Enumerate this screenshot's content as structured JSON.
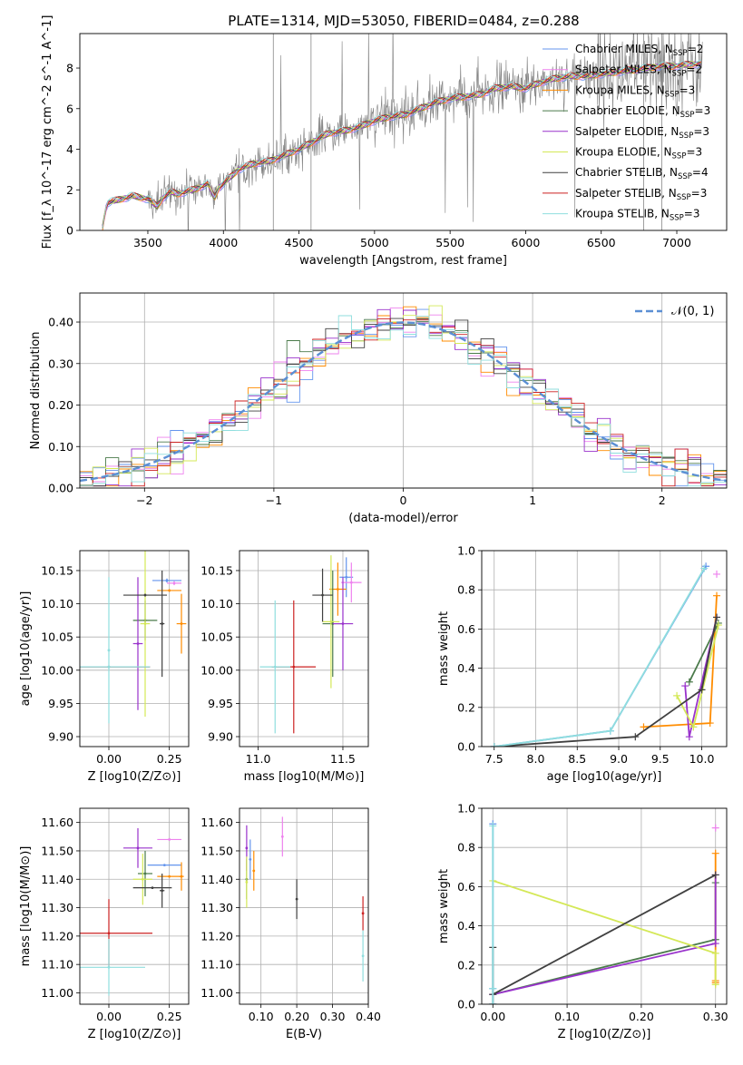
{
  "models": [
    {
      "name": "Chabrier MILES",
      "nssp": "2",
      "color": "#6495ed"
    },
    {
      "name": "Salpeter MILES",
      "nssp": "2",
      "color": "#ee82ee"
    },
    {
      "name": "Kroupa MILES",
      "nssp": "3",
      "color": "#ff8c00"
    },
    {
      "name": "Chabrier ELODIE",
      "nssp": "3",
      "color": "#4a7a4a"
    },
    {
      "name": "Salpeter ELODIE",
      "nssp": "3",
      "color": "#9932cc"
    },
    {
      "name": "Kroupa ELODIE",
      "nssp": "3",
      "color": "#d4e857"
    },
    {
      "name": "Chabrier STELIB",
      "nssp": "4",
      "color": "#404040"
    },
    {
      "name": "Salpeter STELIB",
      "nssp": "3",
      "color": "#cc2222"
    },
    {
      "name": "Kroupa STELIB",
      "nssp": "3",
      "color": "#8fdede"
    }
  ],
  "chart_data": [
    {
      "id": "spectrum",
      "type": "line",
      "title": "PLATE=1314, MJD=53050, FIBERID=0484, z=0.288",
      "xlabel": "wavelength [Angstrom, rest frame]",
      "ylabel": "Flux [f_λ 10^-17 erg cm^-2 s^-1 A^-1]",
      "xlim": [
        3050,
        7330
      ],
      "ylim": [
        0,
        9.7
      ],
      "xticks": [
        3500,
        4000,
        4500,
        5000,
        5500,
        6000,
        6500,
        7000
      ],
      "yticks": [
        0,
        2,
        4,
        6,
        8
      ],
      "legend": "upper-right",
      "continuum": [
        [
          3200,
          0.15
        ],
        [
          3210,
          0.6
        ],
        [
          3230,
          1.35
        ],
        [
          3300,
          1.5
        ],
        [
          3400,
          1.7
        ],
        [
          3500,
          1.55
        ],
        [
          3560,
          1.2
        ],
        [
          3600,
          1.6
        ],
        [
          3650,
          1.9
        ],
        [
          3700,
          1.8
        ],
        [
          3800,
          2.0
        ],
        [
          3900,
          2.3
        ],
        [
          3940,
          1.6
        ],
        [
          3970,
          2.1
        ],
        [
          4000,
          2.3
        ],
        [
          4100,
          3.0
        ],
        [
          4200,
          3.3
        ],
        [
          4300,
          3.4
        ],
        [
          4400,
          3.7
        ],
        [
          4500,
          4.0
        ],
        [
          4600,
          4.4
        ],
        [
          4700,
          4.8
        ],
        [
          4800,
          4.9
        ],
        [
          4900,
          5.1
        ],
        [
          5000,
          5.4
        ],
        [
          5100,
          5.6
        ],
        [
          5200,
          5.7
        ],
        [
          5300,
          6.0
        ],
        [
          5400,
          6.3
        ],
        [
          5500,
          6.5
        ],
        [
          5600,
          6.6
        ],
        [
          5700,
          6.7
        ],
        [
          5800,
          7.0
        ],
        [
          5900,
          7.1
        ],
        [
          6000,
          7.0
        ],
        [
          6100,
          7.3
        ],
        [
          6200,
          7.5
        ],
        [
          6300,
          7.6
        ],
        [
          6400,
          7.6
        ],
        [
          6500,
          7.7
        ],
        [
          6600,
          7.8
        ],
        [
          6700,
          7.9
        ],
        [
          6800,
          8.0
        ],
        [
          6900,
          8.1
        ],
        [
          7000,
          8.1
        ],
        [
          7100,
          8.2
        ],
        [
          7170,
          8.2
        ]
      ]
    },
    {
      "id": "residual-histogram",
      "type": "line",
      "xlabel": "(data-model)/error",
      "ylabel": "Normed distribution",
      "xlim": [
        -2.5,
        2.5
      ],
      "ylim": [
        0,
        0.47
      ],
      "xticks": [
        -2,
        -1,
        0,
        1,
        2
      ],
      "yticks": [
        0.0,
        0.1,
        0.2,
        0.3,
        0.4
      ],
      "gaussian_label": "𝒩(0, 1)",
      "gaussian_color": "#5b8fd4",
      "legend": "upper-right"
    },
    {
      "id": "age-vs-Z",
      "type": "scatter",
      "xlabel": "Z [log10(Z/Z⊙)]",
      "ylabel": "age  [log10(age/yr)]",
      "xlim": [
        -0.12,
        0.33
      ],
      "ylim": [
        9.885,
        10.18
      ],
      "xticks": [
        0.0,
        0.25
      ],
      "yticks": [
        9.9,
        9.95,
        10.0,
        10.05,
        10.1,
        10.15
      ],
      "points": [
        {
          "model": 0,
          "x": 0.24,
          "y": 10.135,
          "xerr": 0.06,
          "yerr": 0.003
        },
        {
          "model": 1,
          "x": 0.27,
          "y": 10.131,
          "xerr": 0.03,
          "yerr": 0.003
        },
        {
          "model": 2,
          "x": 0.3,
          "y": 10.07,
          "xerr": 0.02,
          "yerr": 0.045
        },
        {
          "model": 2,
          "x": 0.25,
          "y": 10.12,
          "xerr": 0.05,
          "yerr": 0.002
        },
        {
          "model": 3,
          "x": 0.15,
          "y": 10.075,
          "xerr": 0.05,
          "yerr": 0.03
        },
        {
          "model": 4,
          "x": 0.12,
          "y": 10.04,
          "xerr": 0.02,
          "yerr": 0.1
        },
        {
          "model": 5,
          "x": 0.15,
          "y": 10.07,
          "xerr": 0.02,
          "yerr": 0.14
        },
        {
          "model": 6,
          "x": 0.15,
          "y": 10.113,
          "xerr": 0.09,
          "yerr": 0.002
        },
        {
          "model": 6,
          "x": 0.22,
          "y": 10.07,
          "xerr": 0.01,
          "yerr": 0.08
        },
        {
          "model": 7,
          "x": 0.0,
          "y": 10.005,
          "xerr": 0.17,
          "yerr": 0.001
        },
        {
          "model": 8,
          "x": 0.0,
          "y": 10.005,
          "xerr": 0.17,
          "yerr": 0.001
        },
        {
          "model": 8,
          "x": 0.0,
          "y": 10.03,
          "xerr": 0.005,
          "yerr": 0.11
        }
      ]
    },
    {
      "id": "age-vs-mass",
      "type": "scatter",
      "xlabel": "mass [log10(M/M⊙)]",
      "ylabel": "",
      "xlim": [
        10.89,
        11.65
      ],
      "ylim": [
        9.885,
        10.18
      ],
      "xticks": [
        11.0,
        11.5
      ],
      "yticks": [
        9.9,
        9.95,
        10.0,
        10.05,
        10.1,
        10.15
      ],
      "points": [
        {
          "model": 0,
          "x": 11.52,
          "y": 10.14,
          "xerr": 0.04,
          "yerr": 0.03
        },
        {
          "model": 1,
          "x": 11.55,
          "y": 10.132,
          "xerr": 0.06,
          "yerr": 0.03
        },
        {
          "model": 2,
          "x": 11.47,
          "y": 10.122,
          "xerr": 0.05,
          "yerr": 0.04
        },
        {
          "model": 3,
          "x": 11.44,
          "y": 10.07,
          "xerr": 0.06,
          "yerr": 0.08
        },
        {
          "model": 4,
          "x": 11.5,
          "y": 10.07,
          "xerr": 0.06,
          "yerr": 0.07
        },
        {
          "model": 5,
          "x": 11.43,
          "y": 10.073,
          "xerr": 0.05,
          "yerr": 0.1
        },
        {
          "model": 6,
          "x": 11.38,
          "y": 10.113,
          "xerr": 0.06,
          "yerr": 0.04
        },
        {
          "model": 7,
          "x": 11.21,
          "y": 10.005,
          "xerr": 0.13,
          "yerr": 0.1
        },
        {
          "model": 8,
          "x": 11.1,
          "y": 10.005,
          "xerr": 0.09,
          "yerr": 0.1
        }
      ]
    },
    {
      "id": "weight-vs-age",
      "type": "line",
      "xlabel": "age  [log10(age/yr)]",
      "ylabel": "mass weight",
      "xlim": [
        7.35,
        10.3
      ],
      "ylim": [
        0,
        1.0
      ],
      "xticks": [
        7.5,
        8.0,
        8.5,
        9.0,
        9.5,
        10.0
      ],
      "yticks": [
        0.0,
        0.2,
        0.4,
        0.6,
        0.8,
        1.0
      ],
      "series": [
        {
          "model": 0,
          "points": [
            [
              7.5,
              0.0
            ],
            [
              8.9,
              0.08
            ],
            [
              10.05,
              0.92
            ]
          ]
        },
        {
          "model": 1,
          "points": [
            [
              10.18,
              0.88
            ]
          ]
        },
        {
          "model": 2,
          "points": [
            [
              9.3,
              0.1
            ],
            [
              10.1,
              0.12
            ],
            [
              10.18,
              0.77
            ]
          ]
        },
        {
          "model": 3,
          "points": [
            [
              9.85,
              0.33
            ],
            [
              10.2,
              0.63
            ]
          ]
        },
        {
          "model": 4,
          "points": [
            [
              9.8,
              0.31
            ],
            [
              9.85,
              0.05
            ],
            [
              10.18,
              0.66
            ]
          ]
        },
        {
          "model": 5,
          "points": [
            [
              9.7,
              0.26
            ],
            [
              9.9,
              0.1
            ],
            [
              10.2,
              0.62
            ]
          ]
        },
        {
          "model": 6,
          "points": [
            [
              7.5,
              0.0
            ],
            [
              9.2,
              0.05
            ],
            [
              10.0,
              0.29
            ],
            [
              10.18,
              0.66
            ]
          ]
        },
        {
          "model": 8,
          "points": [
            [
              7.5,
              0.0
            ],
            [
              8.9,
              0.08
            ],
            [
              10.03,
              0.91
            ]
          ]
        }
      ]
    },
    {
      "id": "mass-vs-Z",
      "type": "scatter",
      "xlabel": "Z [log10(Z/Z⊙)]",
      "ylabel": "mass [log10(M/M⊙)]",
      "xlim": [
        -0.12,
        0.33
      ],
      "ylim": [
        10.96,
        11.65
      ],
      "xticks": [
        0.0,
        0.25
      ],
      "yticks": [
        11.0,
        11.1,
        11.2,
        11.3,
        11.4,
        11.5,
        11.6
      ],
      "points": [
        {
          "model": 0,
          "x": 0.23,
          "y": 11.45,
          "xerr": 0.07,
          "yerr": 0.002
        },
        {
          "model": 1,
          "x": 0.25,
          "y": 11.54,
          "xerr": 0.05,
          "yerr": 0.002
        },
        {
          "model": 2,
          "x": 0.3,
          "y": 11.41,
          "xerr": 0.01,
          "yerr": 0.05
        },
        {
          "model": 2,
          "x": 0.25,
          "y": 11.41,
          "xerr": 0.05,
          "yerr": 0.002
        },
        {
          "model": 3,
          "x": 0.15,
          "y": 11.42,
          "xerr": 0.03,
          "yerr": 0.08
        },
        {
          "model": 4,
          "x": 0.12,
          "y": 11.51,
          "xerr": 0.06,
          "yerr": 0.07
        },
        {
          "model": 5,
          "x": 0.14,
          "y": 11.4,
          "xerr": 0.04,
          "yerr": 0.09
        },
        {
          "model": 6,
          "x": 0.18,
          "y": 11.37,
          "xerr": 0.08,
          "yerr": 0.001
        },
        {
          "model": 6,
          "x": 0.22,
          "y": 11.36,
          "xerr": 0.01,
          "yerr": 0.06
        },
        {
          "model": 7,
          "x": 0.0,
          "y": 11.21,
          "xerr": 0.18,
          "yerr": 0.12
        },
        {
          "model": 8,
          "x": 0.0,
          "y": 11.09,
          "xerr": 0.15,
          "yerr": 0.1
        }
      ]
    },
    {
      "id": "mass-vs-EBV",
      "type": "scatter",
      "xlabel": "E(B-V)",
      "ylabel": "",
      "xlim": [
        0.04,
        0.4
      ],
      "ylim": [
        10.96,
        11.65
      ],
      "xticks": [
        0.1,
        0.2,
        0.3,
        0.4
      ],
      "yticks": [
        11.0,
        11.1,
        11.2,
        11.3,
        11.4,
        11.5,
        11.6
      ],
      "points": [
        {
          "model": 0,
          "x": 0.07,
          "y": 11.47,
          "xerr": 0,
          "yerr": 0.07
        },
        {
          "model": 1,
          "x": 0.16,
          "y": 11.55,
          "xerr": 0,
          "yerr": 0.07
        },
        {
          "model": 2,
          "x": 0.08,
          "y": 11.43,
          "xerr": 0,
          "yerr": 0.07
        },
        {
          "model": 3,
          "x": 0.06,
          "y": 11.4,
          "xerr": 0,
          "yerr": 0.07
        },
        {
          "model": 4,
          "x": 0.06,
          "y": 11.51,
          "xerr": 0,
          "yerr": 0.08
        },
        {
          "model": 5,
          "x": 0.06,
          "y": 11.39,
          "xerr": 0,
          "yerr": 0.09
        },
        {
          "model": 6,
          "x": 0.2,
          "y": 11.33,
          "xerr": 0,
          "yerr": 0.07
        },
        {
          "model": 7,
          "x": 0.385,
          "y": 11.28,
          "xerr": 0,
          "yerr": 0.06
        },
        {
          "model": 8,
          "x": 0.385,
          "y": 11.13,
          "xerr": 0,
          "yerr": 0.09
        }
      ]
    },
    {
      "id": "weight-vs-Z",
      "type": "line",
      "xlabel": "Z [log10(Z/Z⊙)]",
      "ylabel": "mass weight",
      "xlim": [
        -0.015,
        0.315
      ],
      "ylim": [
        0,
        1.0
      ],
      "xticks": [
        0.0,
        0.1,
        0.2,
        0.3
      ],
      "yticks": [
        0.0,
        0.2,
        0.4,
        0.6,
        0.8,
        1.0
      ],
      "series": [
        {
          "model": 0,
          "points": [
            [
              0.0,
              0.92
            ],
            [
              0.0,
              0.08
            ],
            [
              0.0,
              0.0
            ]
          ]
        },
        {
          "model": 1,
          "points": [
            [
              0.3,
              0.9
            ]
          ]
        },
        {
          "model": 2,
          "points": [
            [
              0.3,
              0.11
            ],
            [
              0.3,
              0.77
            ],
            [
              0.3,
              0.12
            ]
          ]
        },
        {
          "model": 3,
          "points": [
            [
              0.0,
              0.05
            ],
            [
              0.3,
              0.33
            ],
            [
              0.3,
              0.62
            ]
          ]
        },
        {
          "model": 4,
          "points": [
            [
              0.0,
              0.05
            ],
            [
              0.3,
              0.31
            ],
            [
              0.3,
              0.66
            ]
          ]
        },
        {
          "model": 5,
          "points": [
            [
              0.0,
              0.63
            ],
            [
              0.3,
              0.26
            ],
            [
              0.3,
              0.1
            ]
          ]
        },
        {
          "model": 6,
          "points": [
            [
              0.0,
              0.0
            ],
            [
              0.0,
              0.29
            ],
            [
              0.0,
              0.05
            ],
            [
              0.3,
              0.66
            ]
          ]
        },
        {
          "model": 8,
          "points": [
            [
              0.0,
              0.91
            ],
            [
              0.0,
              0.08
            ],
            [
              0.0,
              0.0
            ]
          ]
        }
      ]
    }
  ]
}
